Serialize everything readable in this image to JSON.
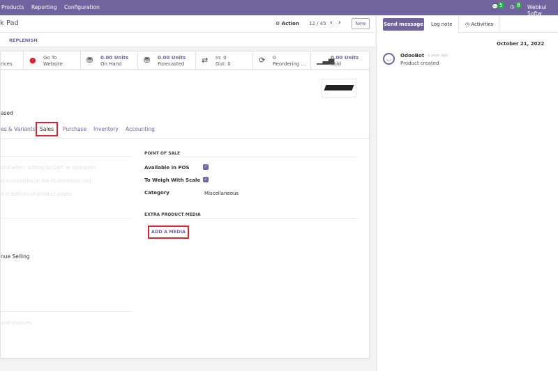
{
  "nav": {
    "menu": [
      "Products",
      "Reporting",
      "Configuration"
    ],
    "messages_count": "5",
    "activities_count": "8",
    "company": "Webkul Softw"
  },
  "control": {
    "title": "k Pad",
    "action": "Action",
    "pager": "12 / 45",
    "new": "New"
  },
  "buttons": {
    "replenish": "REPLENISH"
  },
  "stats": [
    {
      "icon": "",
      "l1": "",
      "l2": "rices"
    },
    {
      "icon": "globe-icon",
      "l1": "Go To",
      "l2": "Website"
    },
    {
      "icon": "cubes-icon",
      "l1": "0.00 Units",
      "l2": "On Hand"
    },
    {
      "icon": "cubes-icon",
      "l1": "0.00 Units",
      "l2": "Forecasted"
    },
    {
      "icon": "exchange-icon",
      "l1": "In:   0",
      "l2": "Out:  0"
    },
    {
      "icon": "refresh-icon",
      "l1": "0",
      "l2": "Reordering ..."
    },
    {
      "icon": "signal-icon",
      "l1": "0.00 Units",
      "l2": "Sold"
    }
  ],
  "form": {
    "purchased_label": "ased",
    "tabs": [
      "es & Variants",
      "Sales",
      "Purchase",
      "Inventory",
      "Accounting"
    ],
    "active_tab": "Sales",
    "left_faint": [
      "and when 'Adding to Cart' or quotation",
      "d accessories in the eCommerce cart",
      "d in bottom of product pages"
    ],
    "left_text": "nue Selling",
    "left_faint2": "and invoices.",
    "pos": {
      "header": "POINT OF SALE",
      "available": "Available in POS",
      "available_checked": true,
      "weigh": "To Weigh With Scale",
      "weigh_checked": true,
      "category_label": "Category",
      "category": "Miscellaneous"
    },
    "media": {
      "header": "EXTRA PRODUCT MEDIA",
      "add": "ADD A MEDIA"
    }
  },
  "chatter": {
    "send": "Send message",
    "log": "Log note",
    "activities": "Activities",
    "date": "October 21, 2022",
    "author": "OdooBot",
    "time": "- a year ago",
    "body": "Product created"
  },
  "colors": {
    "brand": "#71639e",
    "highlight": "#d9232e",
    "badge": "#28a745"
  }
}
